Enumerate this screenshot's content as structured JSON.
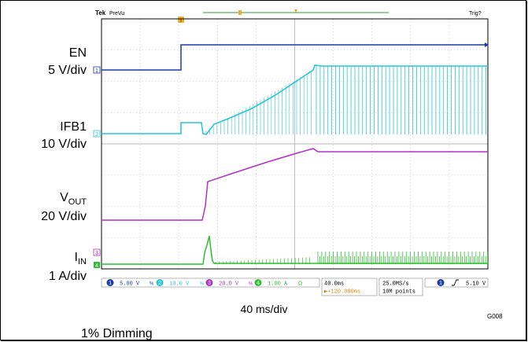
{
  "scope_header": {
    "brand": "Tek",
    "mode": "PreVu",
    "trigger_status": "Trig?",
    "trigger_marker": "T"
  },
  "channel_labels": [
    {
      "name": "EN",
      "scale": "5 V/div"
    },
    {
      "name": "IFB1",
      "scale": "10 V/div"
    },
    {
      "name": "V",
      "sub": "OUT",
      "scale": "20 V/div"
    },
    {
      "name": "I",
      "sub": "IN",
      "scale": "1 A/div"
    }
  ],
  "status_bar": {
    "ch1": {
      "num": "1",
      "value": "5.00 V",
      "color": "#1a3aa8"
    },
    "ch2": {
      "num": "2",
      "value": "10.0 V",
      "color": "#28c6d8"
    },
    "ch3": {
      "num": "3",
      "value": "20.0 V",
      "color": "#b030c8"
    },
    "ch4": {
      "num": "4",
      "value": "1.00 A",
      "color": "#2fbf2f"
    },
    "timebase": "40.0ms",
    "trigger_pos": "▶+120.080ms",
    "sample_rate": "25.0MS/s",
    "record_length": "10M points",
    "trigger_channel": "1",
    "trigger_level": "5.10 V"
  },
  "time_scale": "40 ms/div",
  "figure_id": "G008",
  "caption": "1% Dimming",
  "colors": {
    "ch1": "#1a3aa8",
    "ch2": "#28c6d8",
    "ch3": "#b030c8",
    "ch4": "#2fbf2f",
    "grid": "#b8b8b8"
  }
}
